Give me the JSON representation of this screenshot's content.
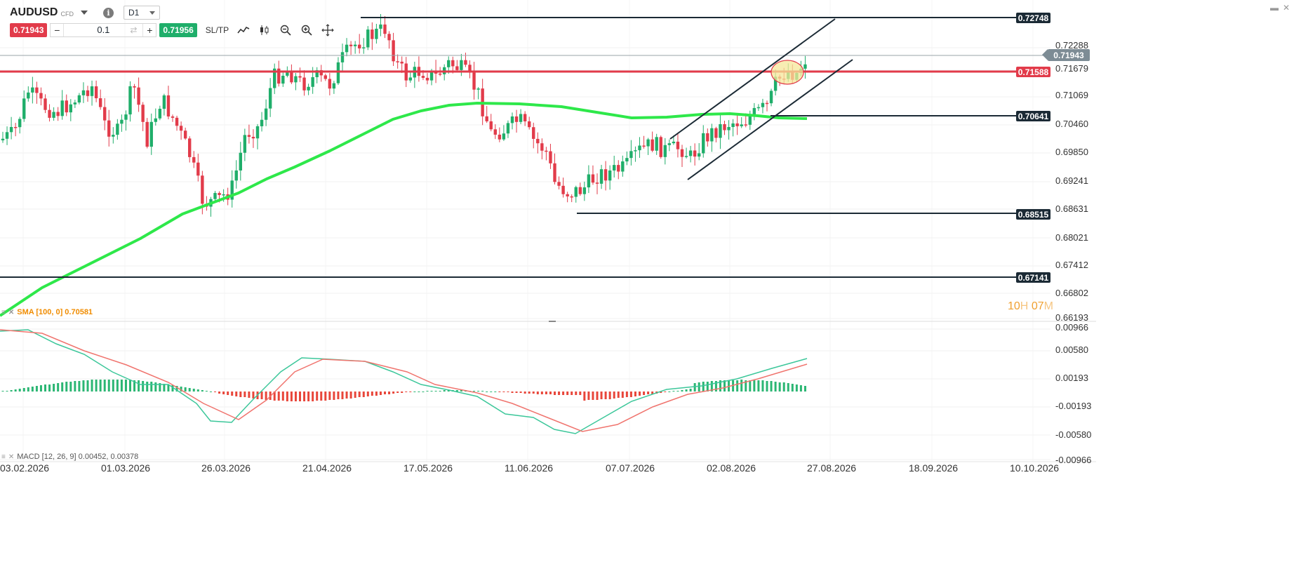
{
  "header": {
    "symbol": "AUDUSD",
    "symbol_type": "CFD",
    "info_icon": "i",
    "timeframe": "D1"
  },
  "trade_bar": {
    "sell_price": "0.71943",
    "minus": "−",
    "quantity": "0.1",
    "refresh_icon": "⇄",
    "plus": "+",
    "buy_price": "0.71956",
    "sltp_label": "SL/TP",
    "icons": [
      "line-chart-icon",
      "candlestick-icon",
      "zoom-out-icon",
      "zoom-in-icon",
      "crosshair-move-icon"
    ]
  },
  "window_controls": {
    "minimize": "▬",
    "close": "✕"
  },
  "y_axis": {
    "labels": [
      "0.72288",
      "0.71679",
      "0.71069",
      "0.70460",
      "0.69850",
      "0.69241",
      "0.68631",
      "0.68021",
      "0.67412",
      "0.66802",
      "0.66193"
    ],
    "macd_labels": [
      "0.00966",
      "0.00580",
      "0.00193",
      "-0.00193",
      "-0.00580",
      "-0.00966"
    ]
  },
  "price_tags": {
    "top_line": "0.72748",
    "current": "0.71943",
    "red_line": "0.71588",
    "mid_line": "0.70641",
    "low_line": "0.68515",
    "bottom_line": "0.67141"
  },
  "x_axis": {
    "labels": [
      "03.02.2026",
      "01.03.2026",
      "26.03.2026",
      "21.04.2026",
      "17.05.2026",
      "11.06.2026",
      "07.07.2026",
      "02.08.2026",
      "27.08.2026",
      "18.09.2026",
      "10.10.2026"
    ]
  },
  "countdown": {
    "hours": "10",
    "h_unit": "H",
    "minutes": "07",
    "m_unit": "M"
  },
  "indicators": {
    "sma_label": "SMA [100, 0] 0.70581",
    "macd_label": "MACD [12, 26, 9] 0.00452, 0.00378"
  },
  "colors": {
    "bull": "#1fae6a",
    "bear": "#e23b4a",
    "sma": "#2ee84a",
    "support_line": "#e23b4a",
    "trend_line": "#1b2a35",
    "macd_line": "#3cc79a",
    "signal_line": "#f0746e",
    "highlight": "#f6e79a"
  }
}
